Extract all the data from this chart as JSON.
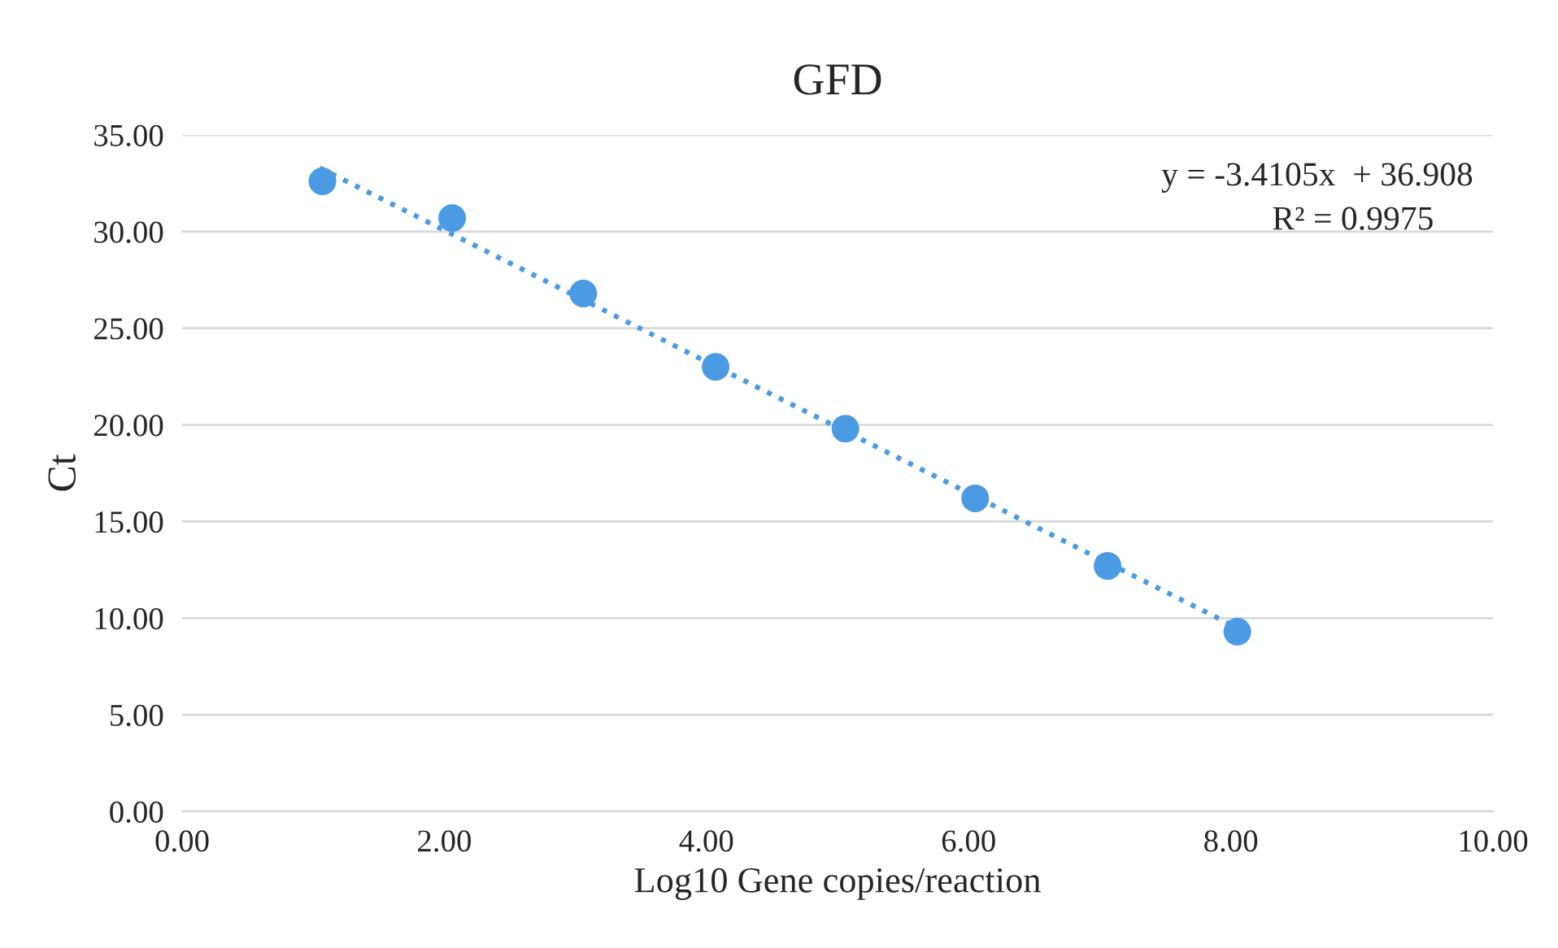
{
  "chart_data": {
    "type": "scatter",
    "title": "GFD",
    "xlabel": "Log10 Gene copies/reaction",
    "ylabel": "Ct",
    "series": [
      {
        "color": "#4a9be3",
        "x": [
          1.07,
          2.06,
          3.06,
          4.07,
          5.06,
          6.05,
          7.06,
          8.05
        ],
        "values": [
          32.6,
          30.7,
          26.8,
          23.0,
          19.8,
          16.2,
          12.7,
          9.3
        ],
        "marker": "circle"
      },
      {
        "type": "line",
        "color": "#4a9be3",
        "x": [
          1.05,
          8.05
        ],
        "values": [
          33.3,
          9.5
        ],
        "line_style": "dotted",
        "marker": "none"
      }
    ],
    "xlim": [
      0,
      10
    ],
    "xticks": [
      {
        "value": 0,
        "label": "0.00"
      },
      {
        "value": 2,
        "label": "2.00"
      },
      {
        "value": 4,
        "label": "4.00"
      },
      {
        "value": 6,
        "label": "6.00"
      },
      {
        "value": 8,
        "label": "8.00"
      },
      {
        "value": 10,
        "label": "10.00"
      }
    ],
    "ylim": [
      0,
      35
    ],
    "yticks": [
      {
        "value": 0,
        "label": "0.00"
      },
      {
        "value": 5,
        "label": "5.00"
      },
      {
        "value": 10,
        "label": "10.00"
      },
      {
        "value": 15,
        "label": "15.00"
      },
      {
        "value": 20,
        "label": "20.00"
      },
      {
        "value": 25,
        "label": "25.00"
      },
      {
        "value": 30,
        "label": "30.00"
      },
      {
        "value": 35,
        "label": "35.00"
      }
    ],
    "grid": "y",
    "annotations": [
      "y = -3.4105x  + 36.908",
      "R² = 0.9975"
    ]
  }
}
